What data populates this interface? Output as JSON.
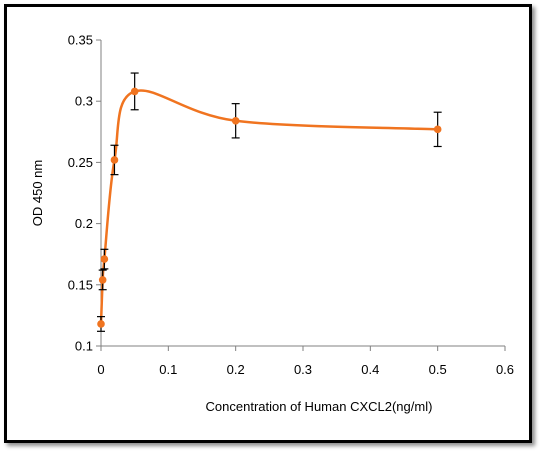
{
  "chart_data": {
    "type": "scatter",
    "title": "",
    "xlabel": "Concentration of Human CXCL2(ng/ml)",
    "ylabel": "OD 450 nm",
    "xlim": [
      0,
      0.6
    ],
    "ylim": [
      0.1,
      0.35
    ],
    "x_ticks": [
      "0",
      "0.1",
      "0.2",
      "0.3",
      "0.4",
      "0.5",
      "0.6"
    ],
    "y_ticks": [
      "0.1",
      "0.15",
      "0.2",
      "0.25",
      "0.3",
      "0.35"
    ],
    "grid": false,
    "legend": "none",
    "smooth_line": true,
    "color": "#f07420",
    "series": [
      {
        "x": [
          0,
          0.0025,
          0.005,
          0.02,
          0.05,
          0.2,
          0.5
        ],
        "y": [
          0.118,
          0.154,
          0.171,
          0.252,
          0.308,
          0.284,
          0.277
        ],
        "error": [
          0.006,
          0.008,
          0.008,
          0.012,
          0.015,
          0.014,
          0.014
        ]
      }
    ]
  }
}
